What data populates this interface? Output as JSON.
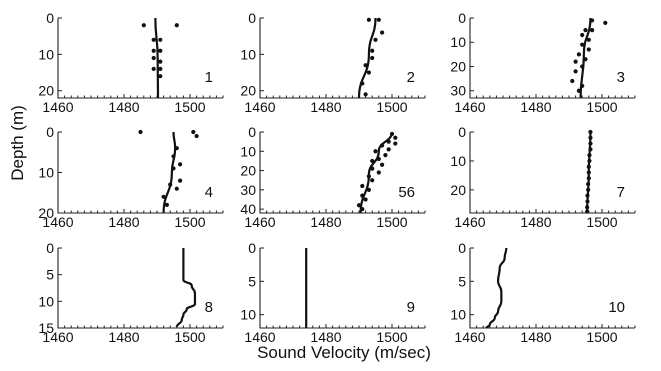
{
  "figure": {
    "xlabel": "Sound Velocity (m/sec)",
    "ylabel": "Depth (m)"
  },
  "chart_data": [
    {
      "type": "scatter",
      "panel_label": "1",
      "xlim": [
        1460,
        1510
      ],
      "ylim": [
        0,
        22
      ],
      "xticks": [
        1460,
        1480,
        1500
      ],
      "yticks": [
        0,
        10,
        20
      ],
      "fit_line": [
        [
          1489.5,
          0
        ],
        [
          1490.2,
          11
        ],
        [
          1490.3,
          22
        ]
      ],
      "points": [
        [
          1486,
          2
        ],
        [
          1496,
          2
        ],
        [
          1489,
          6
        ],
        [
          1491,
          6
        ],
        [
          1489,
          9
        ],
        [
          1491,
          9
        ],
        [
          1489,
          11
        ],
        [
          1491,
          12
        ],
        [
          1489,
          14
        ],
        [
          1491,
          14
        ],
        [
          1491,
          16
        ]
      ]
    },
    {
      "type": "scatter",
      "panel_label": "2",
      "xlim": [
        1460,
        1510
      ],
      "ylim": [
        0,
        22
      ],
      "xticks": [
        1460,
        1480,
        1500
      ],
      "yticks": [
        0,
        10,
        20
      ],
      "fit_line": [
        [
          1495,
          0
        ],
        [
          1493,
          10
        ],
        [
          1490,
          22
        ]
      ],
      "points": [
        [
          1493,
          0.5
        ],
        [
          1496,
          0.5
        ],
        [
          1497,
          4
        ],
        [
          1495,
          6
        ],
        [
          1494,
          9
        ],
        [
          1494,
          11
        ],
        [
          1492,
          13
        ],
        [
          1493,
          15
        ],
        [
          1491,
          18
        ],
        [
          1492,
          21
        ]
      ]
    },
    {
      "type": "scatter",
      "panel_label": "3",
      "xlim": [
        1460,
        1510
      ],
      "ylim": [
        0,
        33
      ],
      "xticks": [
        1460,
        1480,
        1500
      ],
      "yticks": [
        0,
        10,
        20,
        30
      ],
      "fit_line": [
        [
          1496.5,
          0
        ],
        [
          1494.5,
          15
        ],
        [
          1493.5,
          33
        ]
      ],
      "points": [
        [
          1497,
          1
        ],
        [
          1501,
          2
        ],
        [
          1495,
          5
        ],
        [
          1497,
          5
        ],
        [
          1494,
          7
        ],
        [
          1496,
          9
        ],
        [
          1494,
          11
        ],
        [
          1496,
          13
        ],
        [
          1493,
          15
        ],
        [
          1495,
          17
        ],
        [
          1492,
          18
        ],
        [
          1494,
          20
        ],
        [
          1492,
          22
        ],
        [
          1491,
          26
        ],
        [
          1494,
          28
        ],
        [
          1493,
          30
        ]
      ]
    },
    {
      "type": "scatter",
      "panel_label": "4",
      "xlim": [
        1460,
        1510
      ],
      "ylim": [
        0,
        20
      ],
      "xticks": [
        1460,
        1480,
        1500
      ],
      "yticks": [
        0,
        10,
        20
      ],
      "fit_line": [
        [
          1495,
          0
        ],
        [
          1495.5,
          4
        ],
        [
          1494.5,
          10
        ],
        [
          1492,
          20
        ]
      ],
      "points": [
        [
          1485,
          0
        ],
        [
          1501,
          0
        ],
        [
          1502,
          1
        ],
        [
          1496,
          4
        ],
        [
          1495,
          6
        ],
        [
          1497,
          8
        ],
        [
          1495,
          9
        ],
        [
          1497,
          12
        ],
        [
          1494,
          13
        ],
        [
          1496,
          14
        ],
        [
          1492,
          16
        ],
        [
          1493,
          18
        ]
      ]
    },
    {
      "type": "scatter",
      "panel_label": "56",
      "xlim": [
        1460,
        1510
      ],
      "ylim": [
        0,
        42
      ],
      "xticks": [
        1460,
        1480,
        1500
      ],
      "yticks": [
        0,
        10,
        20,
        30,
        40
      ],
      "fit_line": [
        [
          1500,
          0
        ],
        [
          1496,
          10
        ],
        [
          1493,
          22
        ],
        [
          1490.5,
          42
        ]
      ],
      "points": [
        [
          1500,
          1
        ],
        [
          1501,
          3
        ],
        [
          1499,
          5
        ],
        [
          1501,
          6
        ],
        [
          1497,
          7
        ],
        [
          1499,
          9
        ],
        [
          1495,
          10
        ],
        [
          1498,
          12
        ],
        [
          1496,
          14
        ],
        [
          1494,
          15
        ],
        [
          1497,
          17
        ],
        [
          1494,
          19
        ],
        [
          1496,
          21
        ],
        [
          1493,
          23
        ],
        [
          1494,
          25
        ],
        [
          1491,
          28
        ],
        [
          1493,
          30
        ],
        [
          1491,
          33
        ],
        [
          1492,
          35
        ],
        [
          1490,
          38
        ],
        [
          1491,
          40
        ]
      ]
    },
    {
      "type": "scatter",
      "panel_label": "7",
      "xlim": [
        1460,
        1510
      ],
      "ylim": [
        0,
        28
      ],
      "xticks": [
        1460,
        1480,
        1500
      ],
      "yticks": [
        0,
        10,
        20
      ],
      "fit_line": [
        [
          1496.5,
          0
        ],
        [
          1496,
          14
        ],
        [
          1495.5,
          28
        ]
      ],
      "points": [
        [
          1496.5,
          0
        ],
        [
          1496.5,
          2
        ],
        [
          1496.5,
          4
        ],
        [
          1496.5,
          6
        ],
        [
          1496.2,
          8
        ],
        [
          1496.2,
          10
        ],
        [
          1496,
          12
        ],
        [
          1496,
          14
        ],
        [
          1496,
          16
        ],
        [
          1495.8,
          18
        ],
        [
          1495.8,
          20
        ],
        [
          1495.6,
          22
        ],
        [
          1495.6,
          24
        ],
        [
          1495.5,
          26
        ],
        [
          1495.5,
          27.5
        ]
      ]
    },
    {
      "type": "scatter",
      "panel_label": "8",
      "xlim": [
        1460,
        1510
      ],
      "ylim": [
        0,
        15
      ],
      "xticks": [
        1460,
        1480,
        1500
      ],
      "yticks": [
        0,
        5,
        10,
        15
      ],
      "fit_line": [
        [
          1498,
          0
        ],
        [
          1498,
          3
        ],
        [
          1498,
          6
        ],
        [
          1500.5,
          7
        ],
        [
          1501.5,
          8.5
        ],
        [
          1501.5,
          10.5
        ],
        [
          1499,
          11.5
        ],
        [
          1498,
          12.5
        ],
        [
          1497.5,
          13.5
        ],
        [
          1496,
          14.8
        ]
      ],
      "points": []
    },
    {
      "type": "scatter",
      "panel_label": "9",
      "xlim": [
        1460,
        1510
      ],
      "ylim": [
        0,
        12
      ],
      "xticks": [
        1460,
        1480,
        1500
      ],
      "yticks": [
        0,
        5,
        10
      ],
      "fit_line": [
        [
          1474,
          0
        ],
        [
          1474,
          6
        ],
        [
          1474,
          12
        ]
      ],
      "points": []
    },
    {
      "type": "scatter",
      "panel_label": "10",
      "xlim": [
        1460,
        1510
      ],
      "ylim": [
        0,
        12
      ],
      "xticks": [
        1460,
        1480,
        1500
      ],
      "yticks": [
        0,
        5,
        10
      ],
      "fit_line": [
        [
          1471,
          0
        ],
        [
          1470.5,
          1.5
        ],
        [
          1469,
          3
        ],
        [
          1468.5,
          5
        ],
        [
          1469.5,
          6.5
        ],
        [
          1469.5,
          8
        ],
        [
          1468.5,
          9.5
        ],
        [
          1467.5,
          10.5
        ],
        [
          1466,
          11.5
        ],
        [
          1465,
          12
        ]
      ],
      "points": []
    }
  ]
}
